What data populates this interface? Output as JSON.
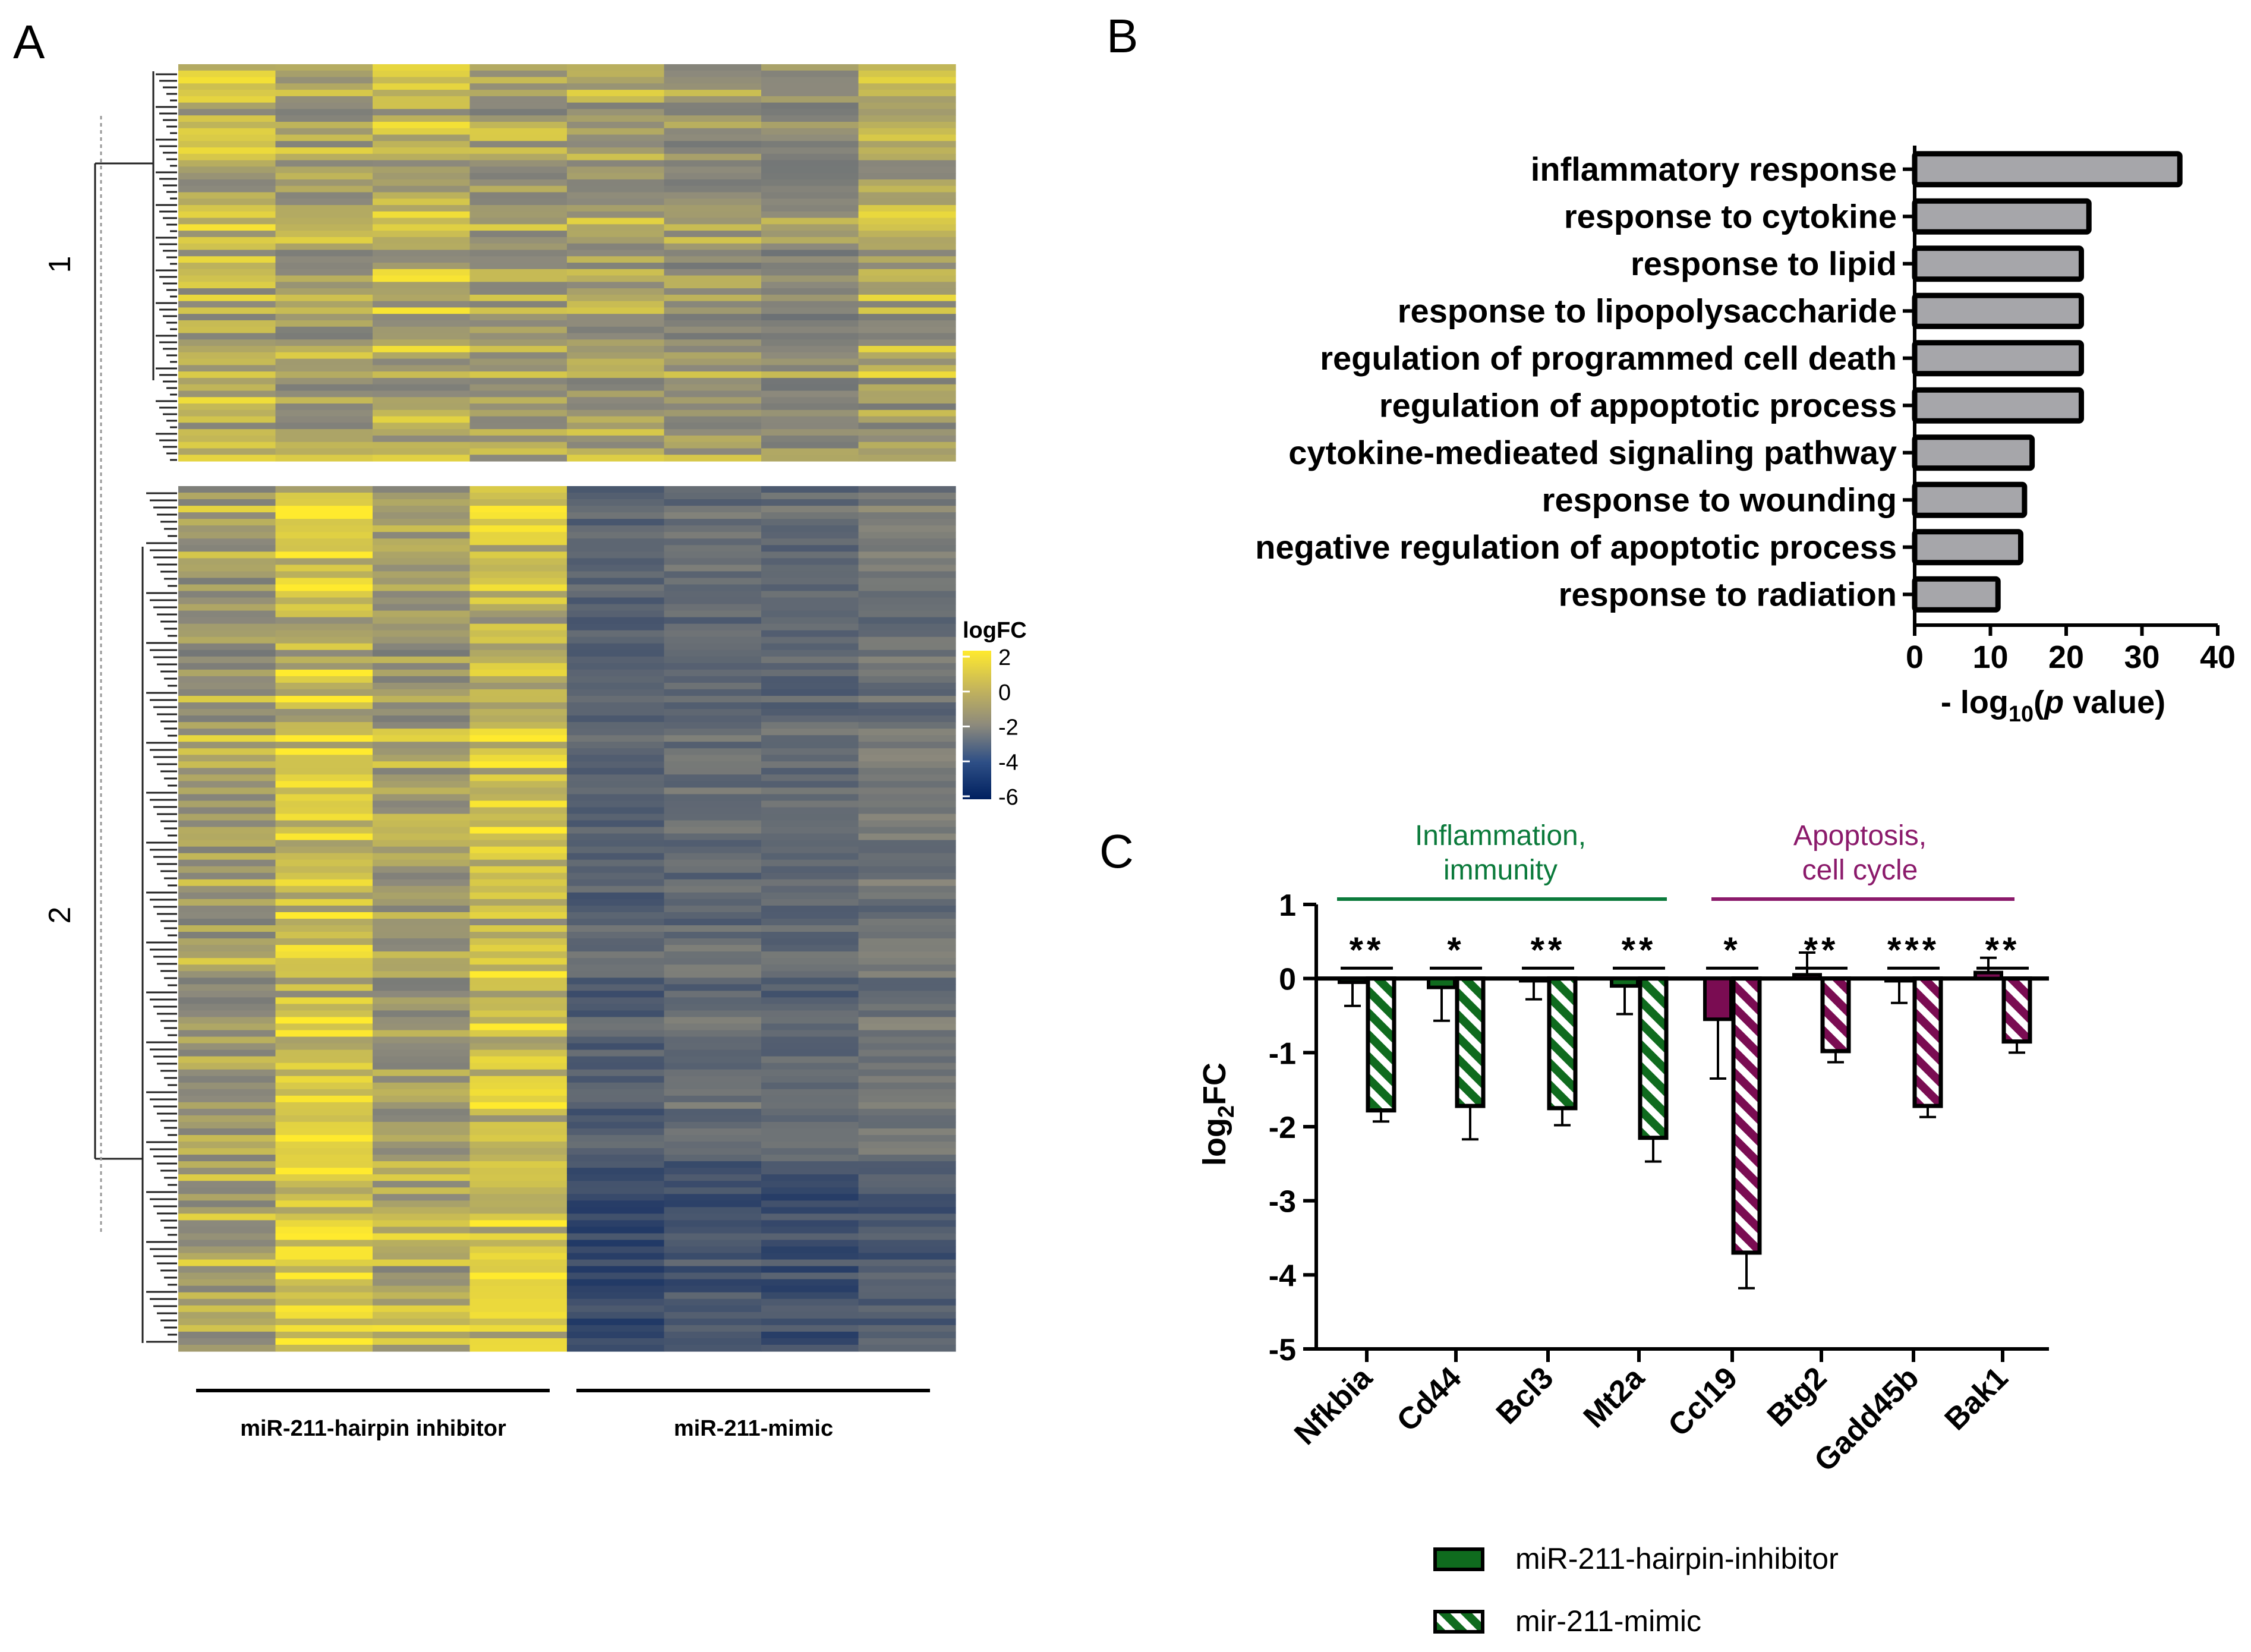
{
  "panels": {
    "a": "A",
    "b": "B",
    "c": "C"
  },
  "colors": {
    "hi": "#ffea2e",
    "mid": "#8d8a7c",
    "lo": "#00205f",
    "bar_gray": "#a6a6aa",
    "inhibitor_green": "#0f6b1e",
    "mimic_purple": "#7a0c52",
    "inflammation_text": "#0b7a3b",
    "apoptosis_text": "#8b1a6b",
    "axis": "#000000"
  },
  "chart_data": [
    {
      "type": "heatmap",
      "panel": "A",
      "columns": 8,
      "cluster_labels": [
        "1",
        "2"
      ],
      "rows_per_cluster": [
        62,
        132
      ],
      "group_labels": [
        "miR-211-hairpin inhibitor",
        "miR-211-mimic"
      ],
      "legend": {
        "title": "logFC",
        "ticks": [
          2,
          0,
          -2,
          -4,
          -6
        ],
        "range": [
          -6,
          2
        ]
      },
      "column_means": {
        "cluster1": [
          0.8,
          0.3,
          0.6,
          0.2,
          0.3,
          0.0,
          -0.3,
          0.4
        ],
        "cluster2": [
          0.3,
          1.3,
          0.3,
          1.1,
          -2.2,
          -1.6,
          -1.9,
          -1.2
        ]
      }
    },
    {
      "type": "bar",
      "panel": "B",
      "orientation": "horizontal",
      "categories": [
        "inflammatory response",
        "response to cytokine",
        "response to lipid",
        "response to lipopolysaccharide",
        "regulation of programmed cell death",
        "regulation of appoptotic process",
        "cytokine-medieated signaling pathway",
        "response to wounding",
        "negative regulation of apoptotic process",
        "response to radiation"
      ],
      "values": [
        35,
        23,
        22,
        22,
        22,
        22,
        15.5,
        14.5,
        14,
        11
      ],
      "xlim": [
        0,
        40
      ],
      "xticks": [
        0,
        10,
        20,
        30,
        40
      ],
      "xlabel": "- log10(p value)",
      "xlabel_parts": {
        "pre": "- log",
        "sub": "10",
        "open": "(",
        "p": "p",
        "post": " value)"
      }
    },
    {
      "type": "bar",
      "panel": "C",
      "categories": [
        "Nfkbia",
        "Cd44",
        "Bcl3",
        "Mt2a",
        "Ccl19",
        "Btg2",
        "Gadd45b",
        "Bak1"
      ],
      "series": [
        {
          "name": "miR-211-hairpin-inhibitor",
          "values": [
            -0.05,
            -0.12,
            -0.03,
            -0.1,
            -0.55,
            0.05,
            -0.03,
            0.08
          ],
          "errors": [
            0.32,
            0.45,
            0.25,
            0.38,
            0.8,
            0.3,
            0.3,
            0.2
          ]
        },
        {
          "name": "mir-211-mimic",
          "values": [
            -1.78,
            -1.72,
            -1.75,
            -2.15,
            -3.7,
            -0.98,
            -1.72,
            -0.85
          ],
          "errors": [
            0.15,
            0.45,
            0.23,
            0.32,
            0.48,
            0.15,
            0.15,
            0.15
          ]
        }
      ],
      "significance": [
        "**",
        "*",
        "**",
        "**",
        "*",
        "**",
        "***",
        "**"
      ],
      "groups": [
        {
          "label": "Inflammation,\nimmunity",
          "line1": "Inflammation,",
          "line2": "immunity",
          "color": "green",
          "range": [
            0,
            3
          ]
        },
        {
          "label": "Apoptosis,\ncell cycle",
          "line1": "Apoptosis,",
          "line2": "cell cycle",
          "color": "purple",
          "range": [
            4,
            7
          ]
        }
      ],
      "ylabel": "log2FC",
      "ylabel_parts": {
        "pre": "log",
        "sub": "2",
        "post": "FC"
      },
      "ylim": [
        -5,
        1
      ],
      "yticks": [
        1,
        0,
        -1,
        -2,
        -3,
        -4,
        -5
      ],
      "legend": [
        "miR-211-hairpin-inhibitor",
        "mir-211-mimic"
      ]
    }
  ]
}
